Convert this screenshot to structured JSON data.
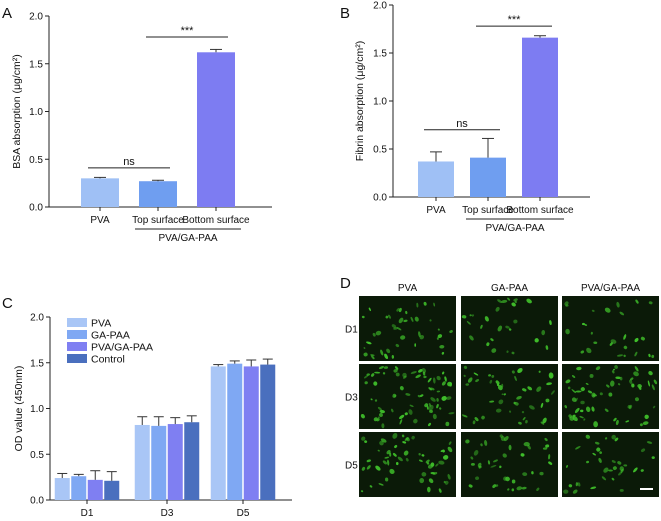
{
  "panels": {
    "a": "A",
    "b": "B",
    "c": "C",
    "d": "D"
  },
  "chart_data": [
    {
      "panel": "A",
      "type": "bar",
      "ylabel": "BSA absorption (μg/cm²)",
      "ylim": [
        0,
        2.0
      ],
      "yticks": [
        "0.0",
        "0.5",
        "1.0",
        "1.5",
        "2.0"
      ],
      "categories": [
        "PVA",
        "Top surface",
        "Bottom surface"
      ],
      "group_label": "PVA/GA-PAA",
      "values": [
        0.3,
        0.27,
        1.62
      ],
      "errors": [
        0.01,
        0.01,
        0.03
      ],
      "colors": [
        "#9fc0f5",
        "#6f9ef0",
        "#7d7cf2"
      ],
      "comparisons": [
        {
          "label": "ns",
          "from": 0,
          "to": 1,
          "y": 0.41
        },
        {
          "label": "***",
          "from": 1,
          "to": 2,
          "y": 1.78
        }
      ]
    },
    {
      "panel": "B",
      "type": "bar",
      "ylabel": "Fibrin absorption (μg/cm²)",
      "ylim": [
        0,
        2.0
      ],
      "yticks": [
        "0.0",
        "0.5",
        "1.0",
        "1.5",
        "2.0"
      ],
      "categories": [
        "PVA",
        "Top surface",
        "Bottom surface"
      ],
      "group_label": "PVA/GA-PAA",
      "values": [
        0.37,
        0.41,
        1.66
      ],
      "errors": [
        0.1,
        0.2,
        0.02
      ],
      "colors": [
        "#9fc0f5",
        "#6f9ef0",
        "#7d7cf2"
      ],
      "comparisons": [
        {
          "label": "ns",
          "from": 0,
          "to": 1,
          "y": 0.7
        },
        {
          "label": "***",
          "from": 1,
          "to": 2,
          "y": 1.78
        }
      ]
    },
    {
      "panel": "C",
      "type": "bar",
      "ylabel": "OD value (450nm)",
      "ylim": [
        0,
        2.0
      ],
      "yticks": [
        "0.0",
        "0.5",
        "1.0",
        "1.5",
        "2.0"
      ],
      "categories": [
        "D1",
        "D3",
        "D5"
      ],
      "series": [
        {
          "name": "PVA",
          "values": [
            0.24,
            0.82,
            1.46
          ],
          "errors": [
            0.05,
            0.09,
            0.02
          ],
          "color": "#a9c6f6"
        },
        {
          "name": "GA-PAA",
          "values": [
            0.26,
            0.81,
            1.49
          ],
          "errors": [
            0.02,
            0.1,
            0.03
          ],
          "color": "#7fa8f3"
        },
        {
          "name": "PVA/GA-PAA",
          "values": [
            0.22,
            0.83,
            1.46
          ],
          "errors": [
            0.1,
            0.07,
            0.07
          ],
          "color": "#7f7ff2"
        },
        {
          "name": "Control",
          "values": [
            0.21,
            0.85,
            1.48
          ],
          "errors": [
            0.1,
            0.07,
            0.06
          ],
          "color": "#4a6fbe"
        }
      ],
      "legend_position": "top-left"
    }
  ],
  "micrographs": {
    "columns": [
      "PVA",
      "GA-PAA",
      "PVA/GA-PAA"
    ],
    "rows": [
      "D1",
      "D3",
      "D5"
    ],
    "background": "#0b1a08",
    "cell_color": "#3fbf2a",
    "scale_bar_color": "#ffffff"
  }
}
